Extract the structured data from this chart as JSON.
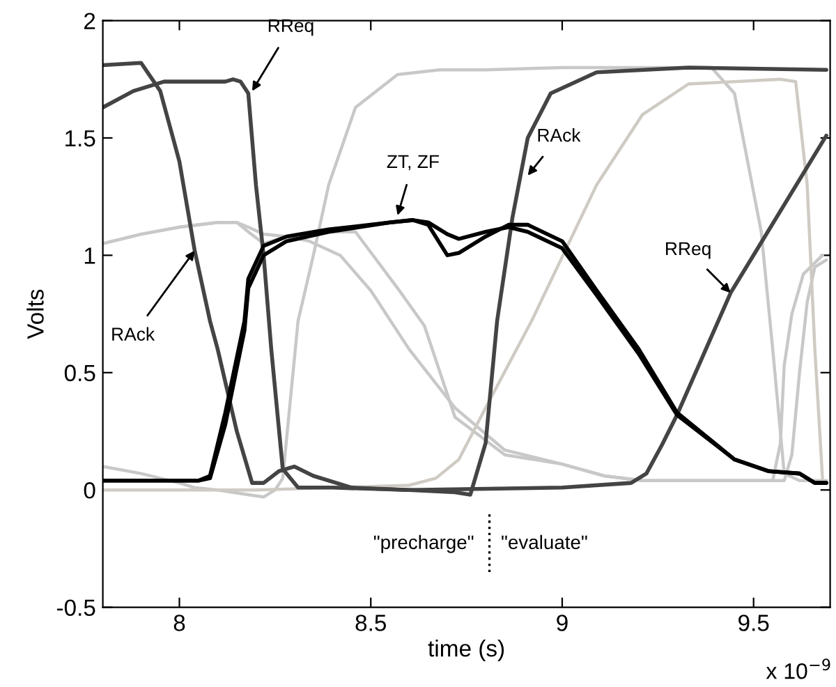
{
  "chart_data": {
    "type": "line",
    "xlabel": "time (s)",
    "ylabel": "Volts",
    "xlim": [
      7.8,
      9.7
    ],
    "xticks": [
      8,
      8.5,
      9,
      9.5
    ],
    "ylim": [
      -0.5,
      2
    ],
    "yticks": [
      -0.5,
      0,
      0.5,
      1,
      1.5,
      2
    ],
    "grid": false,
    "series": [
      {
        "color": "#c8c8c8",
        "x": [
          7.8,
          7.9,
          8.0,
          8.1,
          8.15,
          8.18,
          8.22,
          8.28,
          8.35,
          8.46,
          8.57,
          8.64,
          8.72,
          8.85,
          9.0,
          9.11,
          9.21,
          9.4,
          9.55,
          9.57,
          9.58,
          9.6,
          9.63,
          9.68
        ],
        "values": [
          1.05,
          1.09,
          1.12,
          1.14,
          1.14,
          1.1,
          1.05,
          1.08,
          1.1,
          1.1,
          0.86,
          0.7,
          0.31,
          0.15,
          0.11,
          0.06,
          0.04,
          0.04,
          0.04,
          0.2,
          0.53,
          0.75,
          0.92,
          1.0
        ]
      },
      {
        "color": "#c8c8c8",
        "x": [
          7.8,
          7.9,
          8.0,
          8.1,
          8.15,
          8.18,
          8.22,
          8.28,
          8.34,
          8.42,
          8.5,
          8.6,
          8.72,
          8.85,
          9.0,
          9.11,
          9.21,
          9.4,
          9.58,
          9.6,
          9.62,
          9.64,
          9.66,
          9.69
        ],
        "values": [
          1.05,
          1.09,
          1.12,
          1.14,
          1.14,
          1.12,
          1.09,
          1.08,
          1.06,
          1.0,
          0.85,
          0.6,
          0.35,
          0.17,
          0.11,
          0.06,
          0.04,
          0.04,
          0.04,
          0.15,
          0.5,
          0.8,
          0.95,
          0.98
        ]
      },
      {
        "color": "#c8c8c8",
        "x": [
          7.8,
          7.9,
          8.0,
          8.04,
          8.1,
          8.18,
          8.22,
          8.25,
          8.27,
          8.31,
          8.35,
          8.39,
          8.46,
          8.57,
          8.68,
          8.8,
          9.0,
          9.2,
          9.39,
          9.45,
          9.52,
          9.55,
          9.58,
          9.62,
          9.69
        ],
        "values": [
          0.1,
          0.07,
          0.03,
          0.01,
          0.0,
          -0.02,
          -0.03,
          0.0,
          0.05,
          0.72,
          1.0,
          1.3,
          1.63,
          1.77,
          1.79,
          1.79,
          1.8,
          1.8,
          1.8,
          1.69,
          1.1,
          0.6,
          0.07,
          0.04,
          0.04
        ]
      },
      {
        "color": "#cfcbc4",
        "x": [
          7.8,
          8.0,
          8.2,
          8.4,
          8.6,
          8.67,
          8.73,
          8.8,
          8.92,
          9.09,
          9.21,
          9.33,
          9.57,
          9.61,
          9.64,
          9.66,
          9.68
        ],
        "values": [
          0.0,
          0.0,
          0.0,
          0.01,
          0.02,
          0.05,
          0.13,
          0.35,
          0.72,
          1.3,
          1.6,
          1.73,
          1.75,
          1.74,
          1.3,
          0.6,
          0.05
        ]
      },
      {
        "color": "#444444",
        "x": [
          7.8,
          7.9,
          7.95,
          8.0,
          8.04,
          8.08,
          8.1,
          8.15,
          8.19,
          8.22,
          8.26,
          8.3,
          8.35,
          8.45,
          8.6,
          8.72,
          8.76,
          8.8,
          8.83,
          8.87,
          8.91,
          8.97,
          9.09,
          9.33,
          9.69
        ],
        "values": [
          1.81,
          1.82,
          1.7,
          1.4,
          1.02,
          0.72,
          0.6,
          0.25,
          0.03,
          0.03,
          0.08,
          0.1,
          0.06,
          0.01,
          0.0,
          -0.01,
          -0.02,
          0.2,
          0.72,
          1.16,
          1.5,
          1.69,
          1.78,
          1.8,
          1.79
        ]
      },
      {
        "color": "#444444",
        "x": [
          7.8,
          7.88,
          7.96,
          8.05,
          8.12,
          8.14,
          8.16,
          8.18,
          8.2,
          8.22,
          8.24,
          8.27,
          8.31,
          8.4,
          8.6,
          9.0,
          9.18,
          9.22,
          9.26,
          9.3,
          9.44,
          9.69
        ],
        "values": [
          1.63,
          1.7,
          1.74,
          1.74,
          1.74,
          1.75,
          1.74,
          1.69,
          1.3,
          1.0,
          0.6,
          0.09,
          0.01,
          0.01,
          0.0,
          0.01,
          0.03,
          0.07,
          0.19,
          0.32,
          0.84,
          1.51
        ]
      },
      {
        "color": "#000000",
        "x": [
          7.8,
          8.05,
          8.08,
          8.12,
          8.17,
          8.18,
          8.22,
          8.28,
          8.39,
          8.55,
          8.61,
          8.65,
          8.7,
          8.73,
          8.8,
          8.86,
          8.91,
          9.0,
          9.09,
          9.2,
          9.3,
          9.45,
          9.54,
          9.62,
          9.66,
          9.69
        ],
        "values": [
          0.04,
          0.04,
          0.06,
          0.33,
          0.72,
          0.9,
          1.04,
          1.08,
          1.11,
          1.14,
          1.15,
          1.13,
          1.0,
          1.01,
          1.08,
          1.13,
          1.13,
          1.06,
          0.85,
          0.6,
          0.33,
          0.13,
          0.08,
          0.07,
          0.03,
          0.03
        ]
      },
      {
        "color": "#000000",
        "x": [
          7.8,
          8.05,
          8.08,
          8.12,
          8.17,
          8.18,
          8.22,
          8.28,
          8.39,
          8.55,
          8.61,
          8.65,
          8.7,
          8.73,
          8.8,
          8.86,
          8.91,
          9.0,
          9.09,
          9.2,
          9.3,
          9.45,
          9.54,
          9.62,
          9.66,
          9.69
        ],
        "values": [
          0.04,
          0.04,
          0.05,
          0.28,
          0.68,
          0.86,
          1.0,
          1.06,
          1.1,
          1.14,
          1.15,
          1.14,
          1.09,
          1.07,
          1.1,
          1.12,
          1.1,
          1.03,
          0.83,
          0.58,
          0.32,
          0.13,
          0.08,
          0.07,
          0.03,
          0.03
        ]
      }
    ],
    "ref_lines": [
      {
        "axis": "x",
        "value": 8.81,
        "color": "#000000",
        "line_style": "dotted"
      }
    ],
    "annotations": [
      {
        "text": "RReq",
        "x": 8.19,
        "y": 1.7
      },
      {
        "text": "RAck",
        "x": 8.04,
        "y": 1.02
      },
      {
        "text": "ZT, ZF",
        "x": 8.57,
        "y": 1.17
      },
      {
        "text": "RAck",
        "x": 8.91,
        "y": 1.34
      },
      {
        "text": "RReq",
        "x": 9.44,
        "y": 0.84
      },
      "\"precharge\"",
      "\"evaluate\"",
      "x 10$^{−9}$"
    ]
  }
}
